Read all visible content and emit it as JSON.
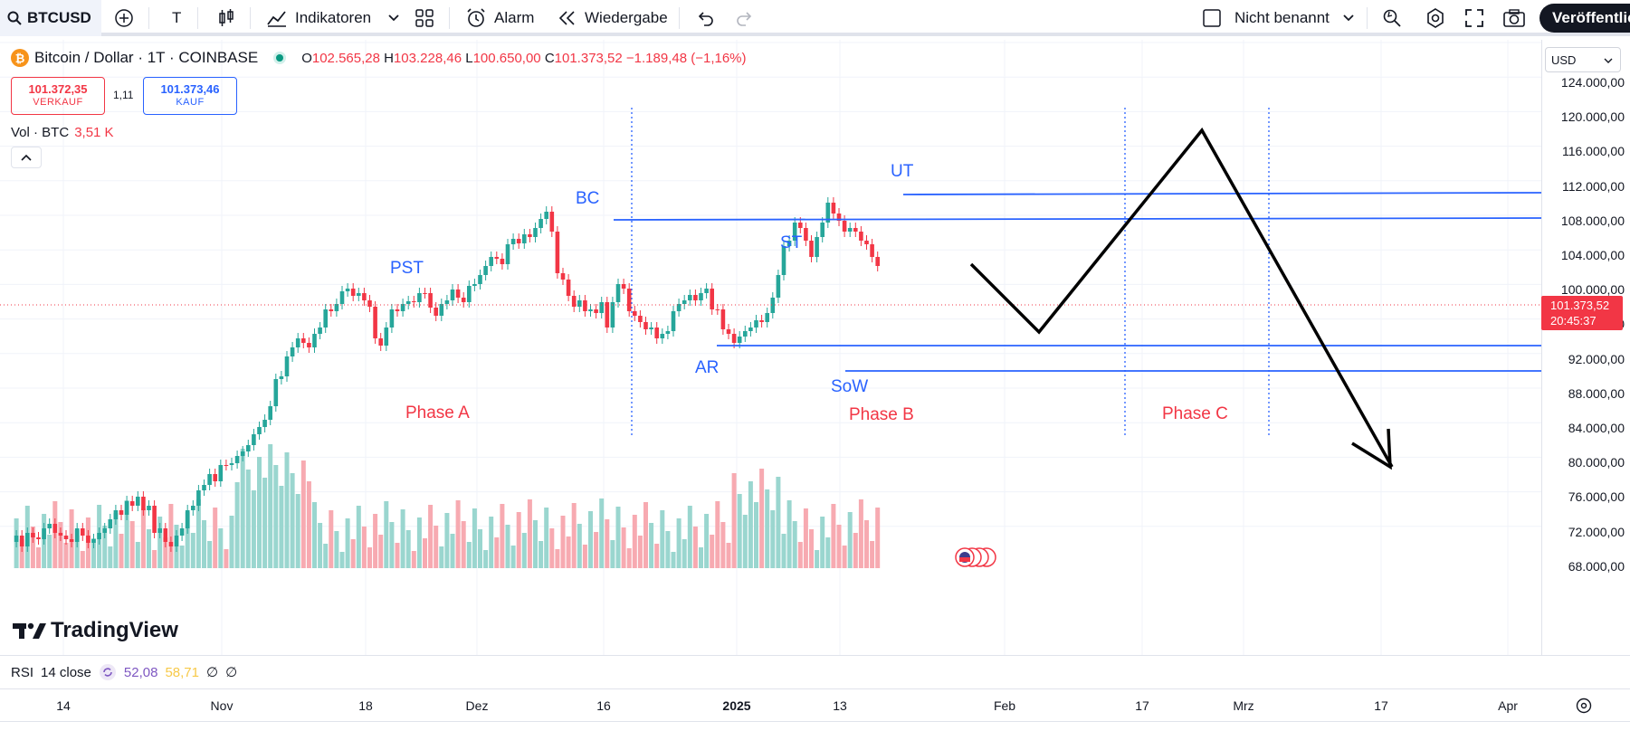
{
  "toolbar": {
    "symbol": "BTCUSD",
    "interval": "T",
    "indicators_label": "Indikatoren",
    "alarm_label": "Alarm",
    "replay_label": "Wiedergabe",
    "layout_name": "Nicht benannt",
    "publish_label": "Veröffentlic"
  },
  "legend": {
    "title": "Bitcoin / Dollar · 1T · COINBASE",
    "open_label": "O",
    "open": "102.565,28",
    "high_label": "H",
    "high": "103.228,46",
    "low_label": "L",
    "low": "100.650,00",
    "close_label": "C",
    "close": "101.373,52",
    "change": "−1.189,48 (−1,16%)",
    "sell_price": "101.372,35",
    "sell_label": "VERKAUF",
    "spread": "1,11",
    "buy_price": "101.373,46",
    "buy_label": "KAUF",
    "vol_label": "Vol · BTC",
    "vol_value": "3,51 K"
  },
  "currency": "USD",
  "current_price": {
    "value": "101.373,52",
    "countdown": "20:45:37",
    "color": "#f23645"
  },
  "price_ticks": [
    "124.000,00",
    "120.000,00",
    "116.000,00",
    "112.000,00",
    "108.000,00",
    "104.000,00",
    "100.000,00",
    "96.000,00",
    "92.000,00",
    "88.000,00",
    "84.000,00",
    "80.000,00",
    "76.000,00",
    "72.000,00",
    "68.000,00"
  ],
  "annotations": {
    "pst": "PST",
    "bc": "BC",
    "st": "ST",
    "ut": "UT",
    "ar": "AR",
    "sow": "SoW",
    "phase_a": "Phase A",
    "phase_b": "Phase B",
    "phase_c": "Phase C"
  },
  "brand": "TradingView",
  "rsi": {
    "label": "RSI",
    "params": "14 close",
    "value1": "52,08",
    "value2": "58,71",
    "value3": "∅",
    "value4": "∅"
  },
  "time_ticks": [
    {
      "label": "14",
      "bold": false
    },
    {
      "label": "Nov",
      "bold": false
    },
    {
      "label": "18",
      "bold": false
    },
    {
      "label": "Dez",
      "bold": false
    },
    {
      "label": "16",
      "bold": false
    },
    {
      "label": "2025",
      "bold": true
    },
    {
      "label": "13",
      "bold": false
    },
    {
      "label": "Feb",
      "bold": false
    },
    {
      "label": "17",
      "bold": false
    },
    {
      "label": "Mrz",
      "bold": false
    },
    {
      "label": "17",
      "bold": false
    },
    {
      "label": "Apr",
      "bold": false
    }
  ],
  "colors": {
    "up": "#26a69a",
    "down": "#f23645",
    "line": "#2962ff",
    "label_blue": "#2962ff",
    "label_red": "#f23645"
  }
}
